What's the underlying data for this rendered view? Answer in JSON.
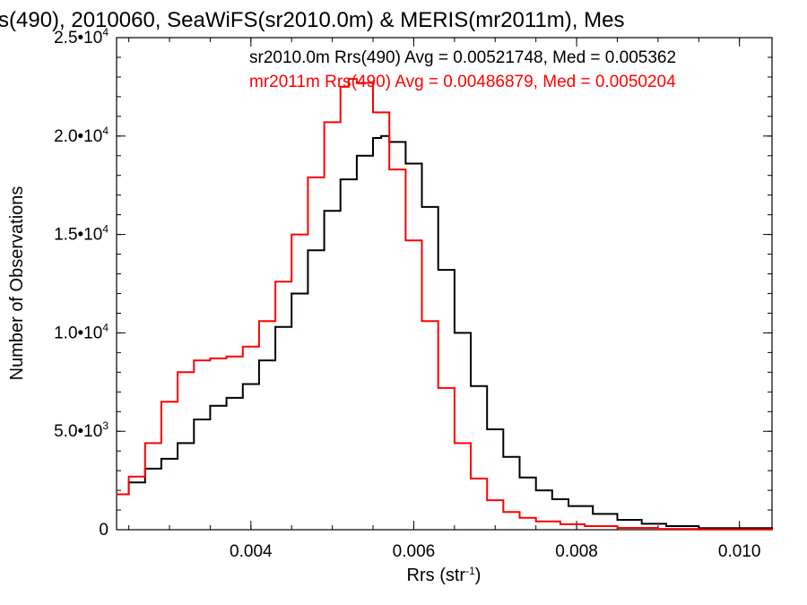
{
  "chart_data": {
    "type": "line",
    "title": "s(490), 2010060, SeaWiFS(sr2010.0m) & MERIS(mr2011m), Mes",
    "xlabel": "Rrs (str",
    "xlabel_sup": "-1",
    "xlabel_close": ")",
    "ylabel": "Number of Observations",
    "xlim": [
      0.00235,
      0.0104
    ],
    "ylim": [
      0,
      25000
    ],
    "xticks": [
      {
        "value": 0.004,
        "label": "0.004"
      },
      {
        "value": 0.006,
        "label": "0.006"
      },
      {
        "value": 0.008,
        "label": "0.008"
      },
      {
        "value": 0.01,
        "label": "0.010"
      }
    ],
    "yticks": [
      {
        "value": 0,
        "mant": "0",
        "exp": ""
      },
      {
        "value": 5000,
        "mant": "5.0•10",
        "exp": "3"
      },
      {
        "value": 10000,
        "mant": "1.0•10",
        "exp": "4"
      },
      {
        "value": 15000,
        "mant": "1.5•10",
        "exp": "4"
      },
      {
        "value": 20000,
        "mant": "2.0•10",
        "exp": "4"
      },
      {
        "value": 25000,
        "mant": "2.5•10",
        "exp": "4"
      }
    ],
    "stats": [
      {
        "text": "sr2010.0m Rrs(490) Avg = 0.00521748, Med = 0.005362",
        "color": "#000000"
      },
      {
        "text": "mr2011m Rrs(490) Avg = 0.00486879, Med = 0.0050204",
        "color": "#ff0000"
      }
    ],
    "series": [
      {
        "color": "#000000",
        "x": [
          0.00235,
          0.0025,
          0.0027,
          0.0029,
          0.0031,
          0.0033,
          0.0035,
          0.0037,
          0.0039,
          0.0041,
          0.0043,
          0.0045,
          0.0047,
          0.0049,
          0.0051,
          0.0053,
          0.0055,
          0.0056,
          0.0057,
          0.0059,
          0.0061,
          0.0063,
          0.0065,
          0.0067,
          0.0069,
          0.0071,
          0.0073,
          0.0075,
          0.0077,
          0.0079,
          0.0082,
          0.0085,
          0.0088,
          0.0091,
          0.0095,
          0.0104
        ],
        "values": [
          1800,
          2400,
          3100,
          3600,
          4400,
          5600,
          6300,
          6700,
          7400,
          8600,
          10300,
          12000,
          14200,
          16200,
          17800,
          19000,
          19900,
          20000,
          19700,
          18600,
          16400,
          13200,
          10000,
          7300,
          5100,
          3700,
          2650,
          2000,
          1550,
          1200,
          800,
          500,
          300,
          180,
          80,
          20
        ]
      },
      {
        "color": "#ff0000",
        "x": [
          0.00235,
          0.0025,
          0.0027,
          0.0029,
          0.0031,
          0.0033,
          0.0035,
          0.0037,
          0.0039,
          0.0041,
          0.0043,
          0.0045,
          0.0047,
          0.0049,
          0.0051,
          0.0052,
          0.0053,
          0.0055,
          0.0057,
          0.0059,
          0.0061,
          0.0063,
          0.0065,
          0.0067,
          0.0069,
          0.0071,
          0.0073,
          0.0075,
          0.0078,
          0.0081,
          0.0085,
          0.009,
          0.0095,
          0.0104
        ],
        "values": [
          1800,
          2700,
          4400,
          6500,
          8000,
          8600,
          8700,
          8800,
          9300,
          10600,
          12600,
          15000,
          17900,
          20700,
          22500,
          22900,
          22700,
          21200,
          18300,
          14700,
          10600,
          7200,
          4400,
          2600,
          1500,
          900,
          600,
          420,
          280,
          180,
          90,
          40,
          15,
          5
        ]
      }
    ]
  }
}
